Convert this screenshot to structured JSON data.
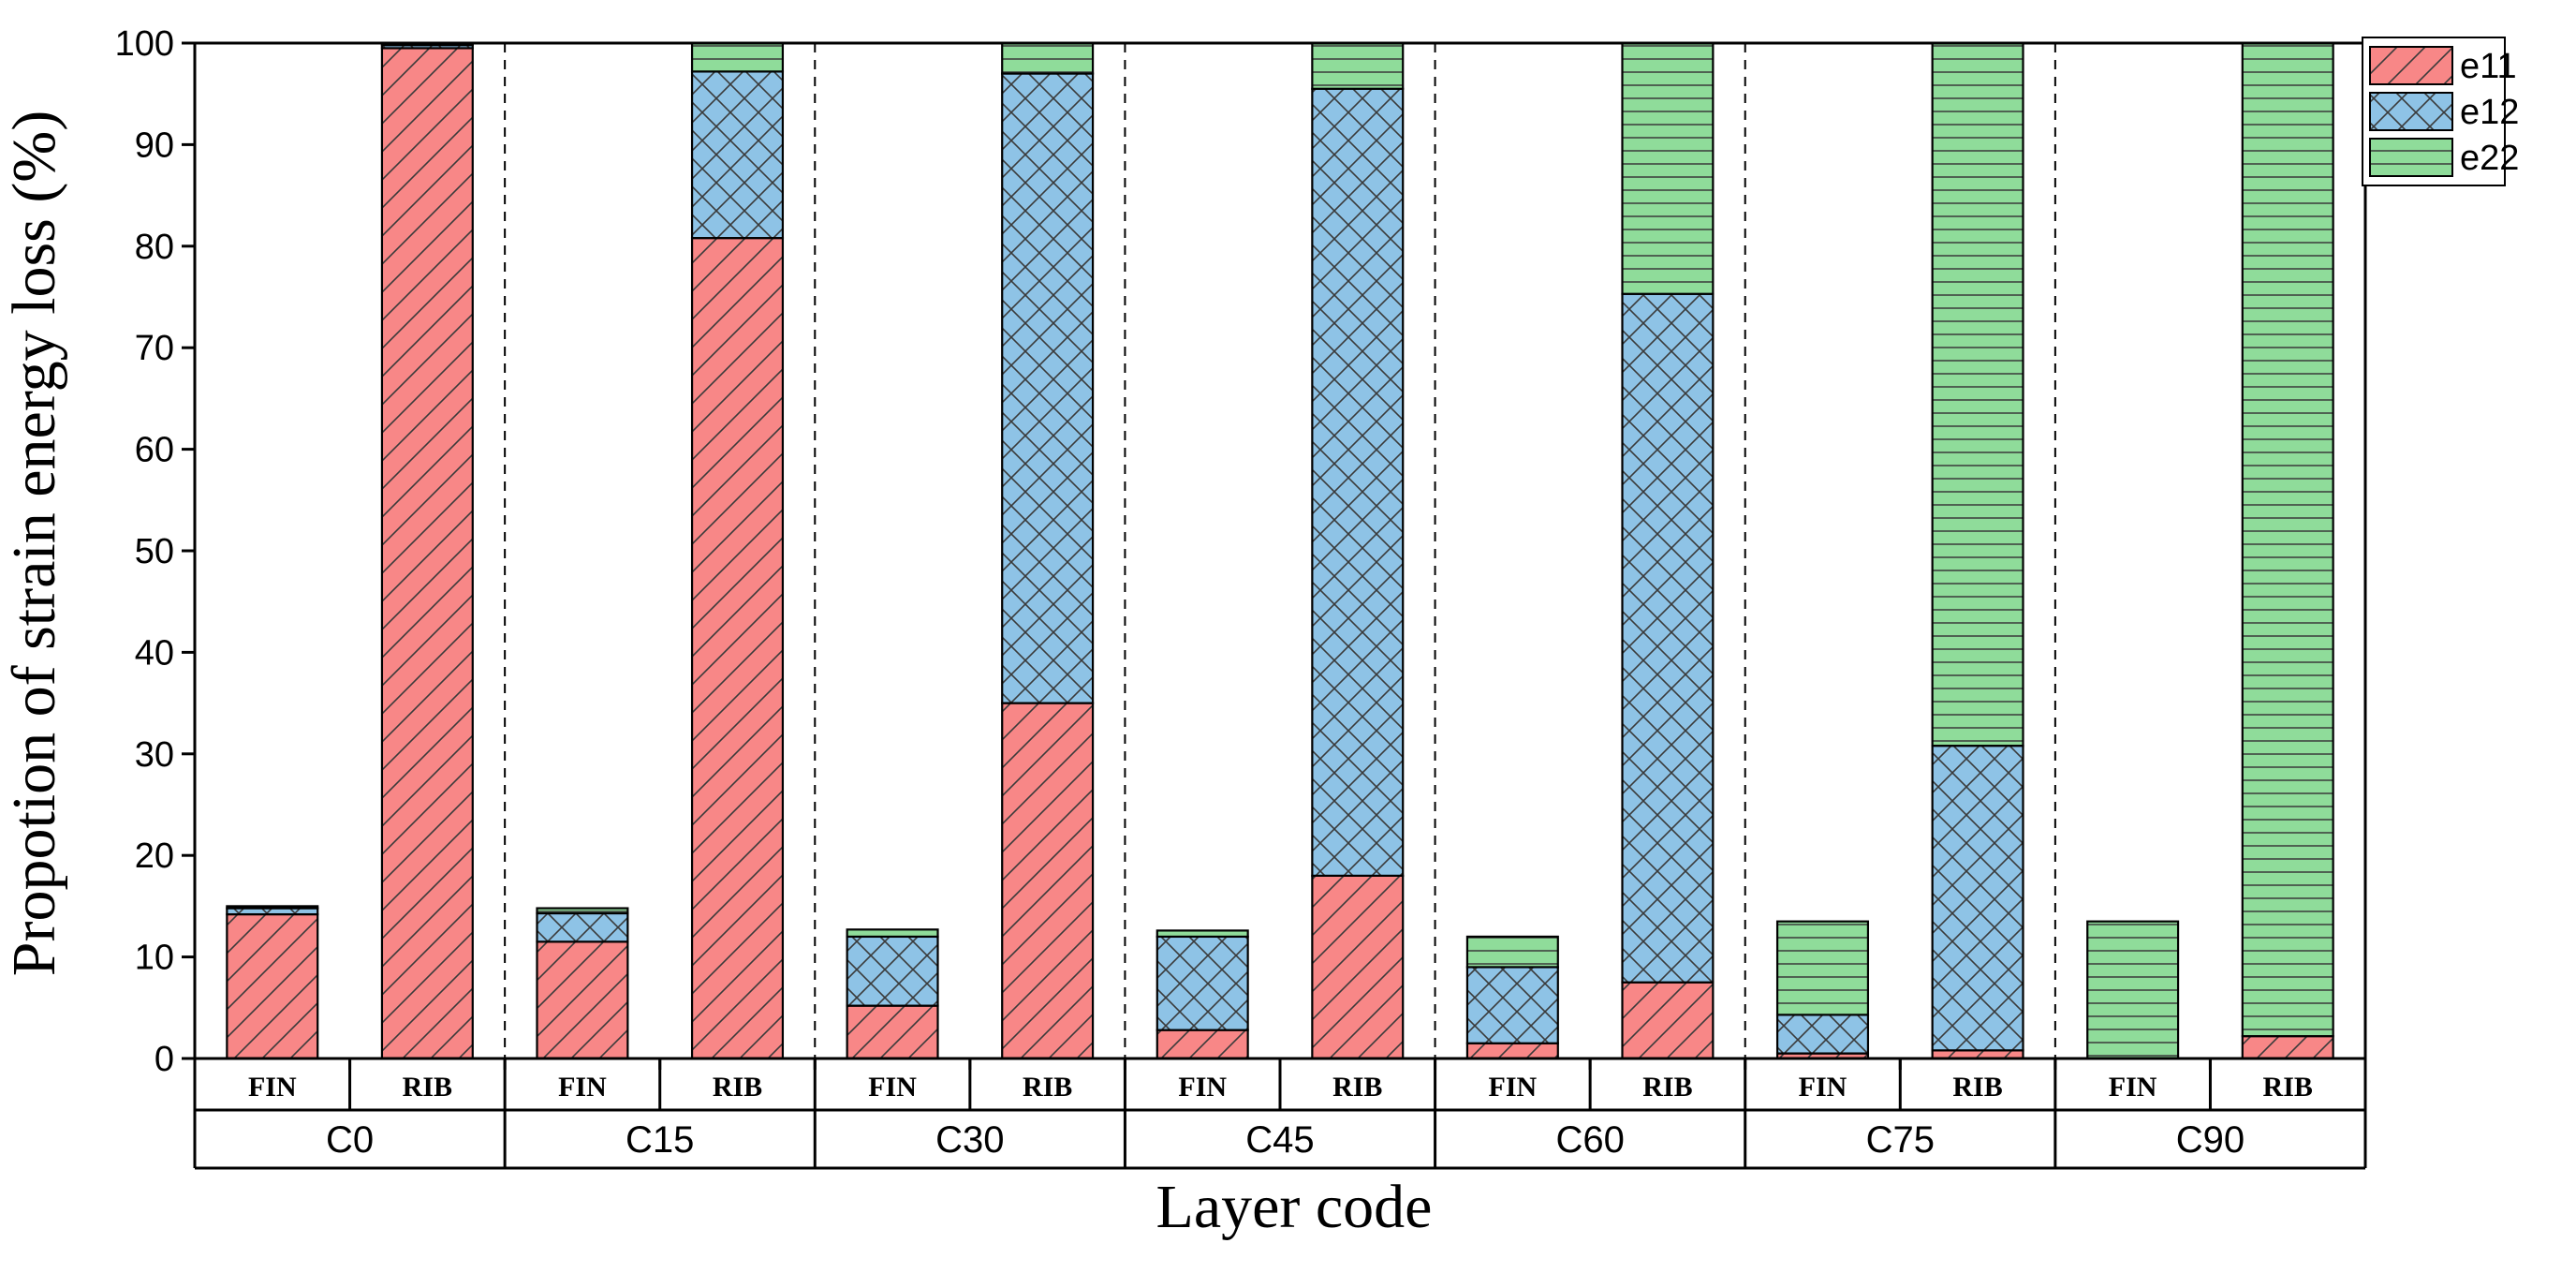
{
  "chart_data": {
    "type": "bar",
    "stacked": true,
    "ylabel": "Propotion of strain energy loss (%)",
    "xlabel": "Layer code",
    "ylim": [
      0,
      100
    ],
    "yticks": [
      0,
      10,
      20,
      30,
      40,
      50,
      60,
      70,
      80,
      90,
      100
    ],
    "groups": [
      "C0",
      "C15",
      "C30",
      "C45",
      "C60",
      "C75",
      "C90"
    ],
    "subcategories": [
      "FIN",
      "RIB"
    ],
    "series": [
      {
        "name": "e11",
        "color": "#f88787",
        "pattern": "diagonal-hatch",
        "values": [
          14.2,
          99.5,
          11.5,
          80.8,
          5.2,
          35.0,
          2.8,
          18.0,
          1.5,
          7.5,
          0.5,
          0.8,
          0.0,
          2.2
        ]
      },
      {
        "name": "e12",
        "color": "#8ec3e6",
        "pattern": "cross-hatch",
        "values": [
          0.6,
          0.3,
          2.8,
          16.4,
          6.8,
          62.0,
          9.2,
          77.5,
          7.5,
          67.8,
          3.8,
          30.0,
          0.0,
          0.0
        ]
      },
      {
        "name": "e22",
        "color": "#8fdc9a",
        "pattern": "horizontal-lines",
        "values": [
          0.2,
          0.2,
          0.5,
          2.8,
          0.7,
          3.0,
          0.6,
          4.5,
          3.0,
          24.7,
          9.2,
          69.2,
          13.5,
          97.8
        ]
      }
    ],
    "legend_position": "top-right",
    "grid": false
  }
}
